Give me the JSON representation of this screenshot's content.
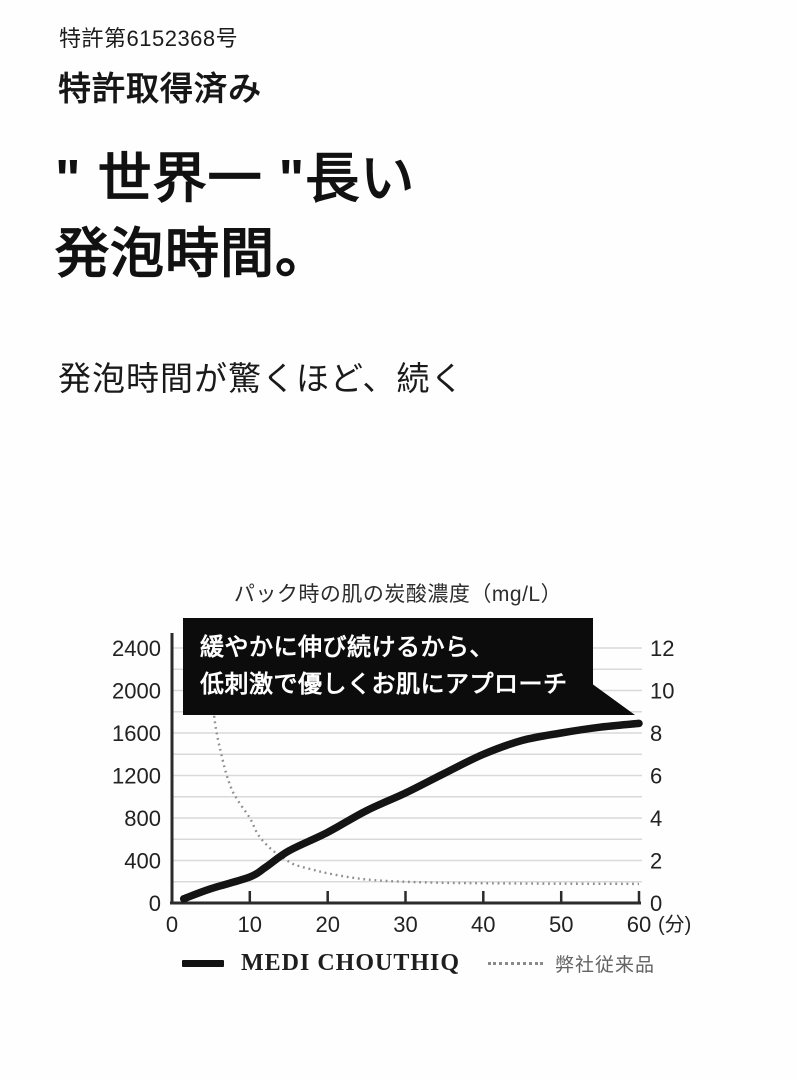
{
  "page": {
    "patent_number": "特許第6152368号",
    "patent_status": "特許取得済み",
    "headline_line1": "\" 世界一 \"長い",
    "headline_line2": "発泡時間。",
    "subheadline": "発泡時間が驚くほど、続く"
  },
  "chart_data": {
    "type": "line",
    "title": "パック時の肌の炭酸濃度（mg/L）",
    "x_unit_label": "(分)",
    "x_ticks": [
      0,
      10,
      20,
      30,
      40,
      50,
      60
    ],
    "xlim": [
      0,
      60
    ],
    "left_axis": {
      "ticks": [
        0,
        400,
        800,
        1200,
        1600,
        2000,
        2400
      ],
      "lim": [
        0,
        2400
      ]
    },
    "right_axis": {
      "ticks": [
        0,
        2,
        4,
        6,
        8,
        10,
        12
      ],
      "lim": [
        0,
        12
      ]
    },
    "grid": {
      "step": 200,
      "color": "#d9d9d9",
      "on": true
    },
    "axis_color": "#2b2b2b",
    "tick_label_color": "#222222",
    "callout": {
      "line1": "緩やかに伸び続けるから、",
      "line2": "低刺激で優しくお肌にアプローチ",
      "bg": "#0c0c0c",
      "text_color": "#ffffff"
    },
    "series": [
      {
        "name": "MEDI CHOUTHIQ",
        "line_style": "solid",
        "color": "#141414",
        "points": [
          [
            1.5,
            40
          ],
          [
            5,
            135
          ],
          [
            10,
            245
          ],
          [
            12,
            335
          ],
          [
            15,
            490
          ],
          [
            20,
            665
          ],
          [
            25,
            870
          ],
          [
            30,
            1035
          ],
          [
            35,
            1220
          ],
          [
            40,
            1400
          ],
          [
            45,
            1530
          ],
          [
            50,
            1600
          ],
          [
            55,
            1655
          ],
          [
            60,
            1690
          ]
        ]
      },
      {
        "name": "弊社従来品",
        "line_style": "dotted",
        "color": "#8f8f8f",
        "points": [
          [
            4.6,
            2550
          ],
          [
            5.4,
            1770
          ],
          [
            6.5,
            1350
          ],
          [
            7.5,
            1100
          ],
          [
            8.5,
            960
          ],
          [
            10,
            800
          ],
          [
            11,
            650
          ],
          [
            12,
            560
          ],
          [
            13,
            490
          ],
          [
            14,
            440
          ],
          [
            15,
            390
          ],
          [
            16,
            355
          ],
          [
            18,
            315
          ],
          [
            20,
            280
          ],
          [
            23,
            240
          ],
          [
            26,
            215
          ],
          [
            30,
            200
          ],
          [
            35,
            190
          ],
          [
            40,
            186
          ],
          [
            50,
            182
          ],
          [
            60,
            180
          ]
        ]
      }
    ],
    "legend": [
      {
        "label": "MEDI CHOUTHIQ",
        "swatch": "solid"
      },
      {
        "label": "弊社従来品",
        "swatch": "dotted"
      }
    ],
    "legend_position": "bottom"
  }
}
